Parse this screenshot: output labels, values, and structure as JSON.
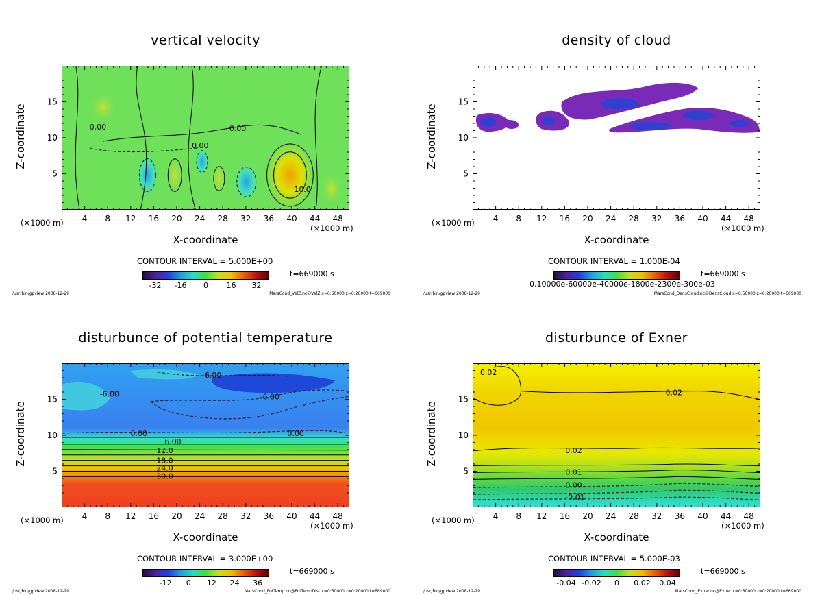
{
  "panels": [
    {
      "id": "vel",
      "title": "vertical velocity",
      "ylabel": "Z-coordinate",
      "xlabel": "X-coordinate",
      "unit_left": "(×1000 m)",
      "unit_right": "(×1000 m)",
      "contour_interval": "CONTOUR INTERVAL = 5.000E+00",
      "time": "t=669000  s",
      "colorbar_ticks": [
        "-32",
        "-16",
        "0",
        "16",
        "32"
      ],
      "colorbar_range": [
        -40,
        40
      ],
      "footer_left": "/usr/bin/gpview   2008-12-29",
      "footer_right": "MarsCond_VelZ.nc@VelZ,x=0:50000,z=0:20000,t=669000",
      "contour_labels": [
        "0.00",
        "0.00",
        "0.00",
        "10.0"
      ],
      "bg": "#6fe05a"
    },
    {
      "id": "cloud",
      "title": "density of cloud",
      "ylabel": "Z-coordinate",
      "xlabel": "X-coordinate",
      "unit_left": "(×1000 m)",
      "unit_right": "(×1000 m)",
      "contour_interval": "CONTOUR INTERVAL = 1.000E-04",
      "time": "t=669000  s",
      "colorbar_ticks": [],
      "colorbar_label_raw": "0.10000e-60000e-40000e-1800e-2300e-300e-03",
      "footer_left": "/usr/bin/gpview   2008-12-29",
      "footer_right": "MarsCond_DensCloud.nc@DensCloud,x=0:50000,z=0:20000,t=669000",
      "contour_labels": [],
      "bg": "#ffffff"
    },
    {
      "id": "ptemp",
      "title": "disturbunce of potential temperature",
      "ylabel": "Z-coordinate",
      "xlabel": "X-coordinate",
      "unit_left": "(×1000 m)",
      "unit_right": "(×1000 m)",
      "contour_interval": "CONTOUR INTERVAL = 3.000E+00",
      "time": "t=669000  s",
      "colorbar_ticks": [
        "-12",
        "0",
        "12",
        "24",
        "36"
      ],
      "colorbar_range": [
        -24,
        42
      ],
      "footer_left": "/usr/bin/gpview   2008-12-29",
      "footer_right": "MarsCond_PotTemp.nc@PotTempDist,x=0:50000,z=0:20000,t=669000",
      "contour_labels": [
        "-6.00",
        "-6.00",
        "-6.00",
        "0.00",
        "0.00",
        "6.00",
        "12.0",
        "18.0",
        "24.0",
        "30.0"
      ],
      "bg": "#3a7ff0"
    },
    {
      "id": "exner",
      "title": "disturbunce of Exner",
      "ylabel": "Z-coordinate",
      "xlabel": "X-coordinate",
      "unit_left": "(×1000 m)",
      "unit_right": "(×1000 m)",
      "contour_interval": "CONTOUR INTERVAL = 5.000E-03",
      "time": "t=669000  s",
      "colorbar_ticks": [
        "-0.04",
        "-0.02",
        "0",
        "0.02",
        "0.04"
      ],
      "colorbar_range": [
        -0.05,
        0.05
      ],
      "footer_left": "/usr/bin/gpview   2008-12-29",
      "footer_right": "MarsCond_Exner.nc@Exner,x=0:50000,z=0:20000,t=669000",
      "contour_labels": [
        "0.02",
        "0.02",
        "0.02",
        "0.01",
        "0.00",
        "-0.01"
      ],
      "bg": "#f4f000"
    }
  ],
  "chart_data": [
    {
      "type": "heatmap",
      "title": "vertical velocity",
      "xlabel": "X-coordinate",
      "ylabel": "Z-coordinate",
      "x_ticks": [
        4,
        8,
        12,
        16,
        20,
        24,
        28,
        32,
        36,
        40,
        44,
        48
      ],
      "y_ticks": [
        5,
        10,
        15
      ],
      "xlim": [
        0,
        50
      ],
      "ylim": [
        0,
        20
      ],
      "contour_interval": 5.0,
      "colorbar_ticks": [
        -32,
        -16,
        0,
        16,
        32
      ]
    },
    {
      "type": "heatmap",
      "title": "density of cloud",
      "xlabel": "X-coordinate",
      "ylabel": "Z-coordinate",
      "x_ticks": [
        4,
        8,
        12,
        16,
        20,
        24,
        28,
        32,
        36,
        40,
        44,
        48
      ],
      "y_ticks": [
        5,
        10,
        15
      ],
      "xlim": [
        0,
        50
      ],
      "ylim": [
        0,
        20
      ],
      "contour_interval": 0.0001
    },
    {
      "type": "heatmap",
      "title": "disturbunce of potential temperature",
      "xlabel": "X-coordinate",
      "ylabel": "Z-coordinate",
      "x_ticks": [
        4,
        8,
        12,
        16,
        20,
        24,
        28,
        32,
        36,
        40,
        44,
        48
      ],
      "y_ticks": [
        5,
        10,
        15
      ],
      "xlim": [
        0,
        50
      ],
      "ylim": [
        0,
        20
      ],
      "contour_interval": 3.0,
      "colorbar_ticks": [
        -12,
        0,
        12,
        24,
        36
      ]
    },
    {
      "type": "heatmap",
      "title": "disturbunce of Exner",
      "xlabel": "X-coordinate",
      "ylabel": "Z-coordinate",
      "x_ticks": [
        4,
        8,
        12,
        16,
        20,
        24,
        28,
        32,
        36,
        40,
        44,
        48
      ],
      "y_ticks": [
        5,
        10,
        15
      ],
      "xlim": [
        0,
        50
      ],
      "ylim": [
        0,
        20
      ],
      "contour_interval": 0.005,
      "colorbar_ticks": [
        -0.04,
        -0.02,
        0,
        0.02,
        0.04
      ]
    }
  ]
}
